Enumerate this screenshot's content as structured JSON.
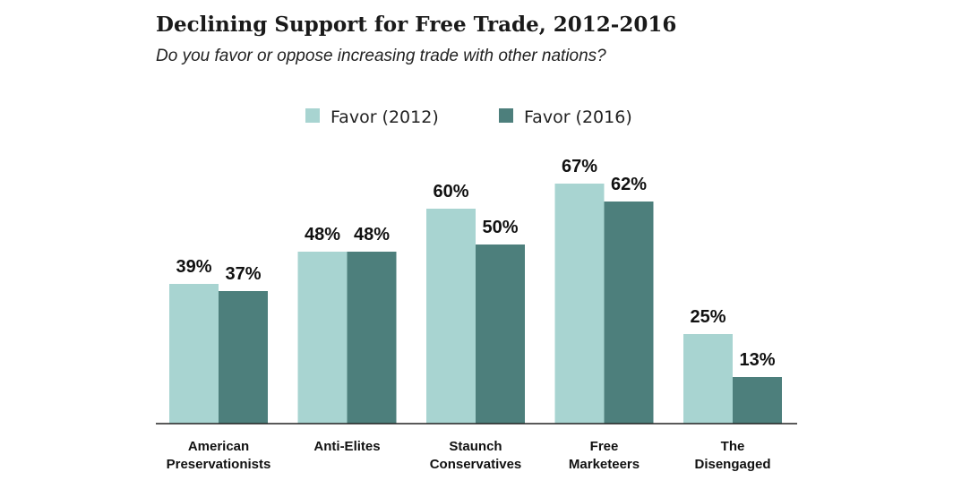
{
  "chart_data": {
    "type": "bar",
    "title": "Declining Support for Free Trade, 2012-2016",
    "subtitle": "Do you favor or oppose increasing trade with other nations?",
    "categories": [
      [
        "American",
        "Preservationists"
      ],
      [
        "Anti-Elites"
      ],
      [
        "Staunch",
        "Conservatives"
      ],
      [
        "Free",
        "Marketeers"
      ],
      [
        "The",
        "Disengaged"
      ]
    ],
    "series": [
      {
        "name": "Favor (2012)",
        "color": "#a8d4d1",
        "values": [
          39,
          48,
          60,
          67,
          25
        ]
      },
      {
        "name": "Favor (2016)",
        "color": "#4d7f7c",
        "values": [
          37,
          48,
          50,
          62,
          13
        ]
      }
    ],
    "value_suffix": "%",
    "ylim": [
      0,
      100
    ],
    "grid": false,
    "legend": "top-center"
  }
}
